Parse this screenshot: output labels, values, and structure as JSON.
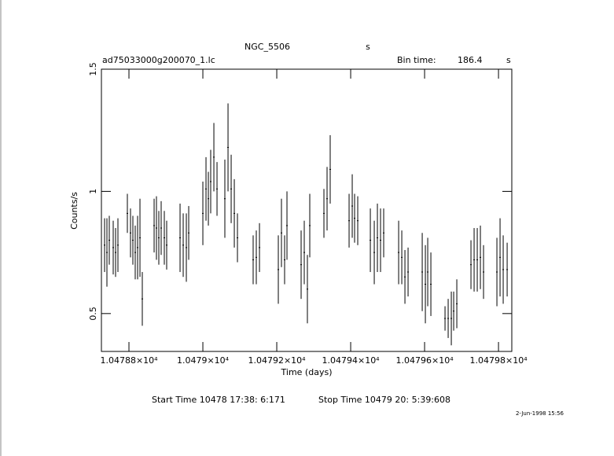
{
  "chart_data": {
    "type": "errorbar",
    "title": "NGC_5506",
    "title_unit": "s",
    "file_label": "ad75033000g200070_1.lc",
    "bin_time_label": "Bin time:",
    "bin_time": 186.4,
    "bin_time_unit": "s",
    "xlabel": "Time (days)",
    "ylabel": "Counts/s",
    "color": "#000000",
    "xlim": [
      10478.7255,
      10479.836
    ],
    "ylim": [
      0.345,
      1.5
    ],
    "xticks": [
      {
        "value": 10478.8,
        "label": "1.04788×10⁴"
      },
      {
        "value": 10479.0,
        "label": "1.0479×10⁴"
      },
      {
        "value": 10479.2,
        "label": "1.04792×10⁴"
      },
      {
        "value": 10479.4,
        "label": "1.04794×10⁴"
      },
      {
        "value": 10479.6,
        "label": "1.04796×10⁴"
      },
      {
        "value": 10479.8,
        "label": "1.04798×10⁴"
      }
    ],
    "yticks": [
      0.5,
      1,
      1.5
    ],
    "x": [
      10478.734,
      10478.7404,
      10478.7468,
      10478.7574,
      10478.7638,
      10478.7702,
      10478.7957,
      10478.8042,
      10478.8106,
      10478.817,
      10478.8234,
      10478.8298,
      10478.8361,
      10478.8681,
      10478.8744,
      10478.8808,
      10478.8872,
      10478.8957,
      10478.9021,
      10478.9383,
      10478.9468,
      10478.9553,
      10478.9617,
      10479.0,
      10479.0085,
      10479.0149,
      10479.0212,
      10479.0298,
      10479.0383,
      10479.0595,
      10479.0681,
      10479.0766,
      10479.0851,
      10479.0936,
      10479.1361,
      10479.1446,
      10479.1532,
      10479.2042,
      10479.2127,
      10479.2212,
      10479.2276,
      10479.2659,
      10479.2744,
      10479.2829,
      10479.2893,
      10479.3276,
      10479.3361,
      10479.3446,
      10479.3957,
      10479.4042,
      10479.4106,
      10479.4191,
      10479.4532,
      10479.4638,
      10479.4723,
      10479.4808,
      10479.4893,
      10479.5298,
      10479.5383,
      10479.5468,
      10479.5553,
      10479.5936,
      10479.6021,
      10479.6085,
      10479.617,
      10479.6553,
      10479.6638,
      10479.6723,
      10479.6787,
      10479.6872,
      10479.7255,
      10479.734,
      10479.7425,
      10479.751,
      10479.7595,
      10479.7957,
      10479.8042,
      10479.8127,
      10479.8234
    ],
    "values": [
      0.78,
      0.75,
      0.8,
      0.77,
      0.75,
      0.78,
      0.91,
      0.83,
      0.8,
      0.75,
      0.77,
      0.81,
      0.56,
      0.86,
      0.85,
      0.81,
      0.85,
      0.81,
      0.78,
      0.81,
      0.78,
      0.77,
      0.83,
      0.91,
      1.01,
      0.97,
      1.04,
      1.14,
      1.01,
      0.97,
      1.18,
      1.01,
      0.91,
      0.81,
      0.72,
      0.73,
      0.77,
      0.68,
      0.83,
      0.72,
      0.86,
      0.7,
      0.75,
      0.6,
      0.86,
      0.91,
      0.97,
      1.09,
      0.88,
      0.94,
      0.89,
      0.88,
      0.8,
      0.75,
      0.81,
      0.8,
      0.83,
      0.75,
      0.73,
      0.65,
      0.67,
      0.67,
      0.62,
      0.67,
      0.62,
      0.48,
      0.48,
      0.48,
      0.51,
      0.54,
      0.7,
      0.72,
      0.72,
      0.73,
      0.67,
      0.67,
      0.73,
      0.68,
      0.68
    ],
    "errors": [
      0.11,
      0.14,
      0.1,
      0.11,
      0.1,
      0.11,
      0.08,
      0.1,
      0.1,
      0.11,
      0.13,
      0.16,
      0.11,
      0.11,
      0.13,
      0.11,
      0.11,
      0.11,
      0.1,
      0.14,
      0.13,
      0.14,
      0.11,
      0.13,
      0.13,
      0.11,
      0.13,
      0.14,
      0.11,
      0.16,
      0.18,
      0.14,
      0.14,
      0.1,
      0.1,
      0.11,
      0.1,
      0.14,
      0.14,
      0.1,
      0.14,
      0.14,
      0.13,
      0.14,
      0.13,
      0.1,
      0.13,
      0.14,
      0.11,
      0.13,
      0.1,
      0.1,
      0.13,
      0.13,
      0.14,
      0.13,
      0.1,
      0.13,
      0.11,
      0.11,
      0.1,
      0.16,
      0.16,
      0.14,
      0.13,
      0.05,
      0.08,
      0.11,
      0.08,
      0.1,
      0.1,
      0.13,
      0.13,
      0.13,
      0.11,
      0.14,
      0.16,
      0.14,
      0.11
    ]
  },
  "footer": {
    "start_time": "Start Time 10478 17:38: 6:171",
    "stop_time": "Stop Time 10479 20: 5:39:608",
    "timestamp": "2-Jun-1998 15:56"
  }
}
